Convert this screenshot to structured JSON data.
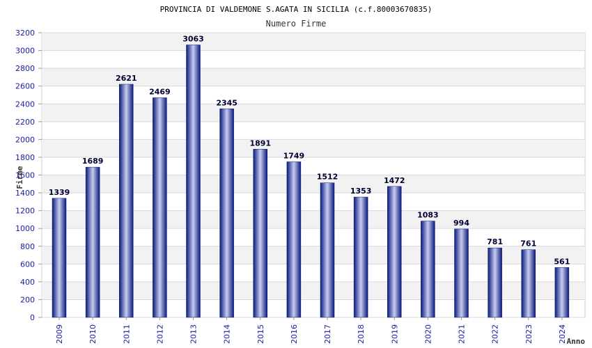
{
  "chart_data": {
    "type": "bar",
    "title": "PROVINCIA DI VALDEMONE S.AGATA IN SICILIA (c.f.80003670835)",
    "subtitle": "Numero Firme",
    "xlabel": "Anno",
    "ylabel": "Firme",
    "ylim": [
      0,
      3200
    ],
    "yticks": [
      0,
      200,
      400,
      600,
      800,
      1000,
      1200,
      1400,
      1600,
      1800,
      2000,
      2200,
      2400,
      2600,
      2800,
      3000,
      3200
    ],
    "categories": [
      "2009",
      "2010",
      "2011",
      "2012",
      "2013",
      "2014",
      "2015",
      "2016",
      "2017",
      "2018",
      "2019",
      "2020",
      "2021",
      "2022",
      "2023",
      "2024"
    ],
    "values": [
      1339,
      1689,
      2621,
      2469,
      3063,
      2345,
      1891,
      1749,
      1512,
      1353,
      1472,
      1083,
      994,
      781,
      761,
      561
    ],
    "grid": true,
    "colors": {
      "bar_dark": "#0a1a7a",
      "bar_light": "#c8ccf0",
      "band": "#f2f2f2",
      "grid": "#d8d8d8",
      "tick": "#1a1aa6"
    }
  }
}
